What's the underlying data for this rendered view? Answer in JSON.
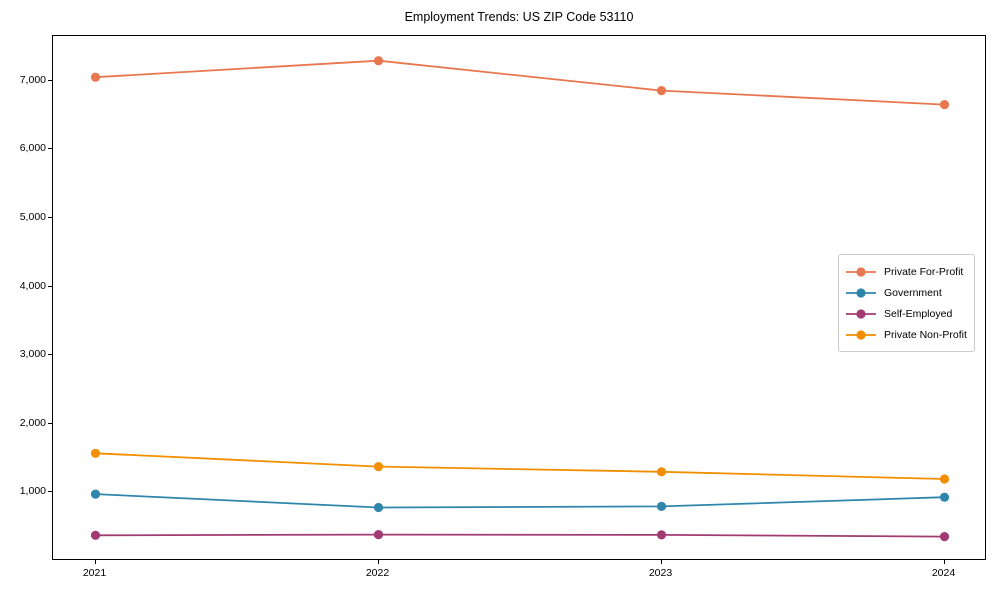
{
  "chart_data": {
    "type": "line",
    "title": "Employment Trends: US ZIP Code 53110",
    "xlabel": "",
    "ylabel": "",
    "categories": [
      2021,
      2022,
      2023,
      2024
    ],
    "series": [
      {
        "name": "Private For-Profit",
        "color": "#E8764E",
        "values": [
          7050,
          7290,
          6855,
          6650
        ]
      },
      {
        "name": "Government",
        "color": "#2E86AB",
        "values": [
          975,
          780,
          795,
          930
        ]
      },
      {
        "name": "Self-Employed",
        "color": "#A23B72",
        "values": [
          375,
          385,
          380,
          355
        ]
      },
      {
        "name": "Private Non-Profit",
        "color": "#F18F01",
        "values": [
          1570,
          1375,
          1300,
          1195
        ]
      }
    ],
    "yticks": [
      1000,
      2000,
      3000,
      4000,
      5000,
      6000,
      7000
    ],
    "ylim": [
      0,
      7650
    ],
    "xlim": [
      2020.85,
      2024.15
    ],
    "grid": false,
    "marker": "circle",
    "legend_position": "center right"
  },
  "colors": {
    "axis": "#000000",
    "background": "#ffffff",
    "legend_border": "#cccccc"
  }
}
